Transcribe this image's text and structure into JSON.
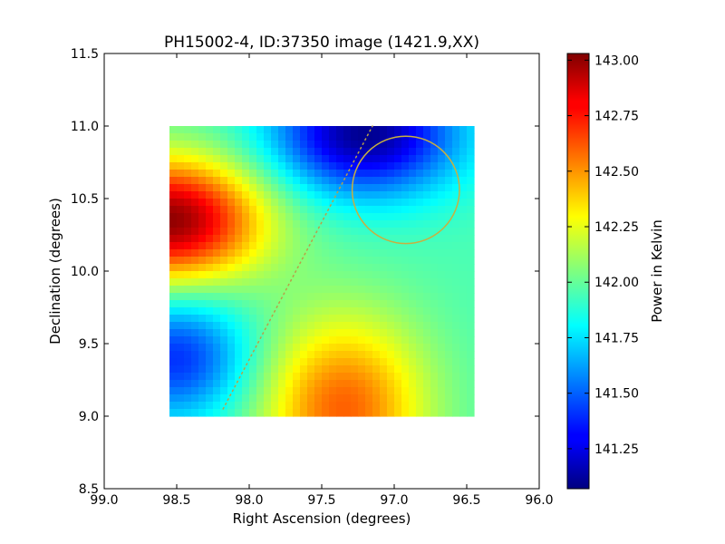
{
  "chart_data": {
    "type": "heatmap",
    "title": "PH15002-4, ID:37350 image (1421.9,XX)",
    "xlabel": "Right Ascension (degrees)",
    "ylabel": "Declination (degrees)",
    "xlim": [
      99.0,
      96.0
    ],
    "ylim": [
      8.5,
      11.5
    ],
    "x_ticks": [
      "99.0",
      "98.5",
      "98.0",
      "97.5",
      "97.0",
      "96.5",
      "96.0"
    ],
    "y_ticks": [
      "8.5",
      "9.0",
      "9.5",
      "10.0",
      "10.5",
      "11.0",
      "11.5"
    ],
    "image_extent": {
      "ra": [
        98.55,
        96.45
      ],
      "dec": [
        9.0,
        11.0
      ]
    },
    "colorscale": "jet",
    "value_range": [
      141.07,
      143.03
    ],
    "features": {
      "hot_spots": [
        {
          "ra": 98.55,
          "dec": 10.35,
          "value": 143.0
        },
        {
          "ra": 97.35,
          "dec": 9.05,
          "value": 142.6
        }
      ],
      "cold_spots": [
        {
          "ra": 97.2,
          "dec": 10.95,
          "value": 141.1
        },
        {
          "ra": 98.5,
          "dec": 9.4,
          "value": 141.4
        }
      ],
      "background_value": 141.95
    },
    "circle": {
      "ra": 96.92,
      "dec": 10.56,
      "radius_deg": 0.37,
      "color": "#c8b040"
    },
    "dotted_line": {
      "points": [
        [
          98.18,
          9.05
        ],
        [
          97.15,
          11.0
        ]
      ],
      "color": "#b8a048"
    },
    "colorbar": {
      "label": "Power in Kelvin",
      "range": [
        141.07,
        143.03
      ],
      "ticks": [
        "141.25",
        "141.50",
        "141.75",
        "142.00",
        "142.25",
        "142.50",
        "142.75",
        "143.00"
      ]
    }
  }
}
